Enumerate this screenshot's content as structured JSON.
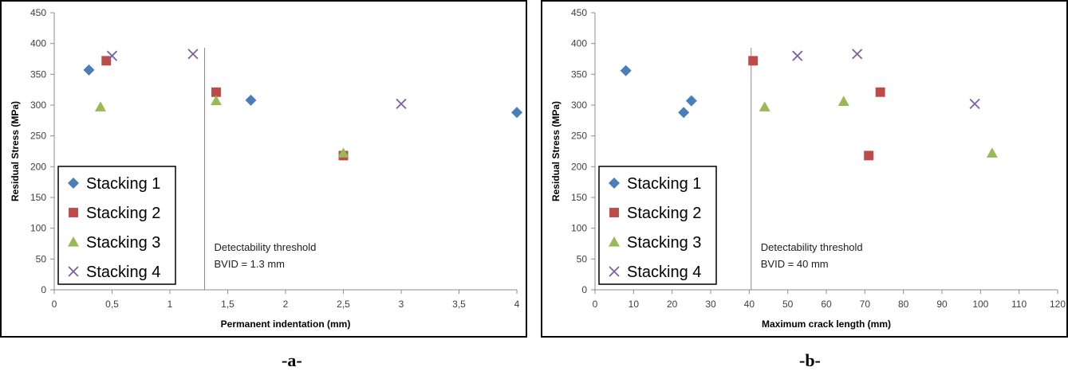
{
  "chart_data": [
    {
      "type": "scatter",
      "xlabel": "Permanent indentation (mm)",
      "ylabel": "Residual Stress (MPa)",
      "xlim": [
        0,
        4
      ],
      "ylim": [
        0,
        450
      ],
      "x_ticks": [
        0,
        0.5,
        1,
        1.5,
        2,
        2.5,
        3,
        3.5,
        4
      ],
      "x_tick_labels": [
        "0",
        "0,5",
        "1",
        "1,5",
        "2",
        "2,5",
        "3",
        "3,5",
        "4"
      ],
      "y_ticks": [
        0,
        50,
        100,
        150,
        200,
        250,
        300,
        350,
        400,
        450
      ],
      "y_tick_labels": [
        "0",
        "50",
        "100",
        "150",
        "200",
        "250",
        "300",
        "350",
        "400",
        "450"
      ],
      "grid": false,
      "legend_position": "bottom-left",
      "threshold": {
        "x": 1.3,
        "line1": "Detectability threshold",
        "line2": "BVID = 1.3 mm"
      },
      "series": [
        {
          "name": "Stacking 1",
          "marker": "diamond",
          "color": "#4A7EBB",
          "points": [
            [
              0.3,
              357
            ],
            [
              1.7,
              308
            ],
            [
              4.0,
              288
            ]
          ]
        },
        {
          "name": "Stacking 2",
          "marker": "square",
          "color": "#BE4B48",
          "points": [
            [
              0.45,
              372
            ],
            [
              1.4,
              321
            ],
            [
              2.5,
              218
            ]
          ]
        },
        {
          "name": "Stacking 3",
          "marker": "triangle",
          "color": "#98B954",
          "points": [
            [
              0.4,
              297
            ],
            [
              1.4,
              307
            ],
            [
              2.5,
              222
            ]
          ]
        },
        {
          "name": "Stacking 4",
          "marker": "x",
          "color": "#7D60A0",
          "points": [
            [
              0.5,
              380
            ],
            [
              1.2,
              383
            ],
            [
              3.0,
              302
            ]
          ]
        }
      ]
    },
    {
      "type": "scatter",
      "xlabel": "Maximum crack length (mm)",
      "ylabel": "Residual Stress (MPa)",
      "xlim": [
        0,
        120
      ],
      "ylim": [
        0,
        450
      ],
      "x_ticks": [
        0,
        10,
        20,
        30,
        40,
        50,
        60,
        70,
        80,
        90,
        100,
        110,
        120
      ],
      "x_tick_labels": [
        "0",
        "10",
        "20",
        "30",
        "40",
        "50",
        "60",
        "70",
        "80",
        "90",
        "100",
        "110",
        "120"
      ],
      "y_ticks": [
        0,
        50,
        100,
        150,
        200,
        250,
        300,
        350,
        400,
        450
      ],
      "y_tick_labels": [
        "0",
        "50",
        "100",
        "150",
        "200",
        "250",
        "300",
        "350",
        "400",
        "450"
      ],
      "grid": false,
      "legend_position": "bottom-left",
      "threshold": {
        "x": 40.5,
        "line1": "Detectability threshold",
        "line2": "BVID = 40 mm"
      },
      "series": [
        {
          "name": "Stacking 1",
          "marker": "diamond",
          "color": "#4A7EBB",
          "points": [
            [
              8,
              356
            ],
            [
              23,
              288
            ],
            [
              25,
              307
            ]
          ]
        },
        {
          "name": "Stacking 2",
          "marker": "square",
          "color": "#BE4B48",
          "points": [
            [
              41,
              372
            ],
            [
              74,
              321
            ],
            [
              71,
              218
            ]
          ]
        },
        {
          "name": "Stacking 3",
          "marker": "triangle",
          "color": "#98B954",
          "points": [
            [
              44,
              297
            ],
            [
              64.5,
              306
            ],
            [
              103,
              222
            ]
          ]
        },
        {
          "name": "Stacking 4",
          "marker": "x",
          "color": "#7D60A0",
          "points": [
            [
              52.5,
              380
            ],
            [
              68,
              383
            ],
            [
              98.5,
              302
            ]
          ]
        }
      ]
    }
  ],
  "sublabels": {
    "a": "-a-",
    "b": "-b-"
  }
}
